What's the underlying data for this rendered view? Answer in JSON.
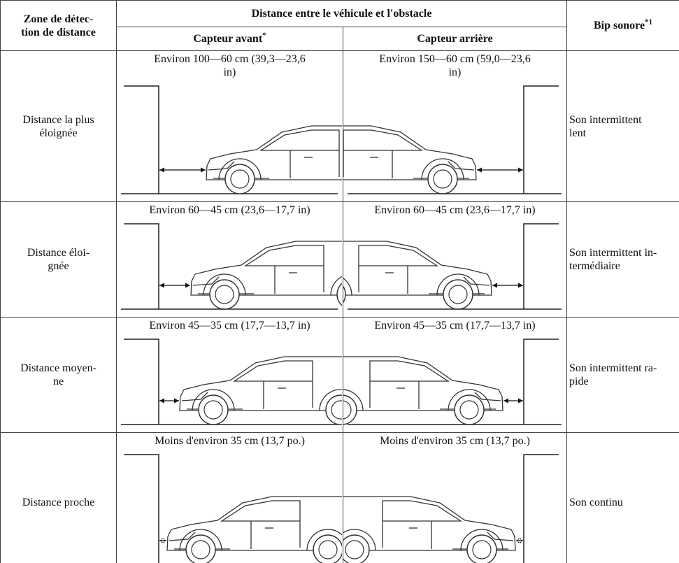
{
  "header": {
    "zone": "Zone de détec-\ntion de distance",
    "distance": "Distance entre le véhicule et l'obstacle",
    "front": {
      "text": "Capteur avant",
      "note": "*"
    },
    "rear": {
      "text": "Capteur arrière"
    },
    "sound": {
      "text": "Bip sonore",
      "note": "*1"
    }
  },
  "rows": [
    {
      "zone": "Distance la plus\néloignée",
      "front": "Environ 100—60 cm (39,3—23,6\nin)",
      "rear": "Environ 150—60 cm (59,0—23,6\nin)",
      "sound": "Son intermittent\nlent"
    },
    {
      "zone": "Distance éloi-\ngnée",
      "front": "Environ 60—45 cm (23,6—17,7 in)",
      "rear": "Environ 60—45 cm (23,6—17,7 in)",
      "sound": "Son intermittent in-\ntermédiaire"
    },
    {
      "zone": "Distance moyen-\nne",
      "front": "Environ 45—35 cm (17,7—13,7 in)",
      "rear": "Environ 45—35 cm (17,7—13,7 in)",
      "sound": "Son intermittent ra-\npide"
    },
    {
      "zone": "Distance proche",
      "front": "Moins d'environ 35 cm (13,7 po.)",
      "rear": "Moins d'environ 35 cm (13,7 po.)",
      "sound": "Son continu"
    }
  ]
}
